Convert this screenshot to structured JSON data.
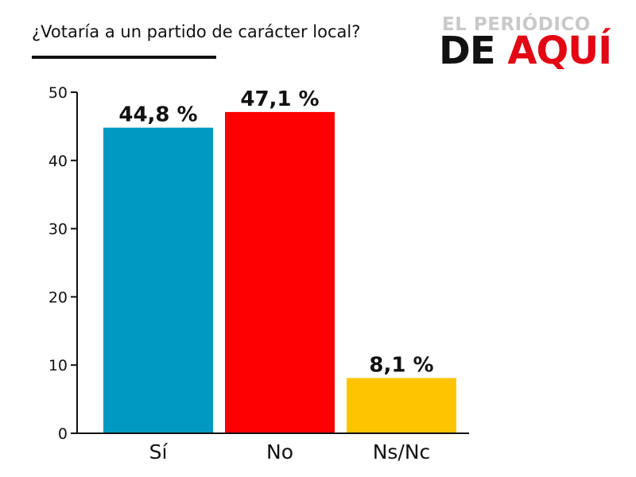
{
  "header": {
    "title": "¿Votaría a un partido de carácter local?",
    "logo": {
      "line1": "EL PERIÓDICO",
      "line2_part1": "DE ",
      "line2_part2": "AQUÍ"
    }
  },
  "colors": {
    "axis": "#111111",
    "logo_accent": "#e30613"
  },
  "chart_data": {
    "type": "bar",
    "title": "¿Votaría a un partido de carácter local?",
    "categories": [
      "Sí",
      "No",
      "Ns/Nc"
    ],
    "values": [
      44.8,
      47.1,
      8.1
    ],
    "data_labels": [
      "44,8 %",
      "47,1 %",
      "8,1 %"
    ],
    "bar_colors": [
      "#0099c2",
      "#ff0000",
      "#ffc400"
    ],
    "ylim": [
      0,
      50
    ],
    "yticks": [
      0,
      10,
      20,
      30,
      40,
      50
    ],
    "xlabel": "",
    "ylabel": "",
    "grid": false,
    "legend": "none"
  }
}
